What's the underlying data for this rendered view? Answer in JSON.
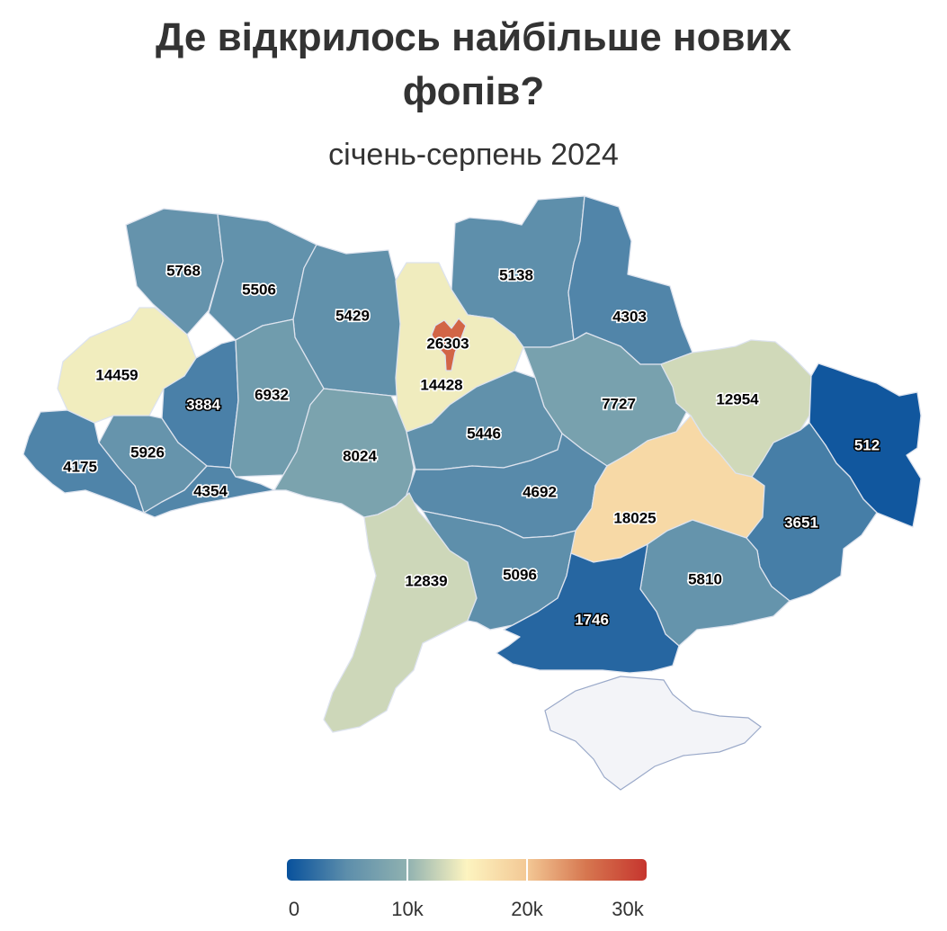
{
  "header": {
    "title_line1": "Де відкрилось найбільше нових",
    "title_line2": "фопів?",
    "subtitle": "січень-серпень 2024"
  },
  "chart_data": {
    "type": "choropleth",
    "title": "Де відкрилось найбільше нових фопів?",
    "subtitle": "січень-серпень 2024",
    "values": [
      {
        "label": "5768"
      },
      {
        "label": "5506"
      },
      {
        "label": "5429"
      },
      {
        "label": "5138"
      },
      {
        "label": "4303"
      },
      {
        "label": "26303"
      },
      {
        "label": "14459"
      },
      {
        "label": "3884"
      },
      {
        "label": "6932"
      },
      {
        "label": "14428"
      },
      {
        "label": "7727"
      },
      {
        "label": "12954"
      },
      {
        "label": "512"
      },
      {
        "label": "5926"
      },
      {
        "label": "4175"
      },
      {
        "label": "4354"
      },
      {
        "label": "8024"
      },
      {
        "label": "5446"
      },
      {
        "label": "4692"
      },
      {
        "label": "18025"
      },
      {
        "label": "3651"
      },
      {
        "label": "12839"
      },
      {
        "label": "5096"
      },
      {
        "label": "5810"
      },
      {
        "label": "1746"
      }
    ],
    "color_scale": {
      "min": 0,
      "max": 30000,
      "colors": [
        "#08519c",
        "#5d8eab",
        "#8fb1b0",
        "#fdf4c0",
        "#f3c895",
        "#d6764f",
        "#c6352e"
      ],
      "no_data_color": "#f3f4f8",
      "tick_labels": [
        "0",
        "10k",
        "20k",
        "30k"
      ]
    }
  },
  "legend": {
    "ticks": [
      "0",
      "10k",
      "20k",
      "30k"
    ]
  }
}
